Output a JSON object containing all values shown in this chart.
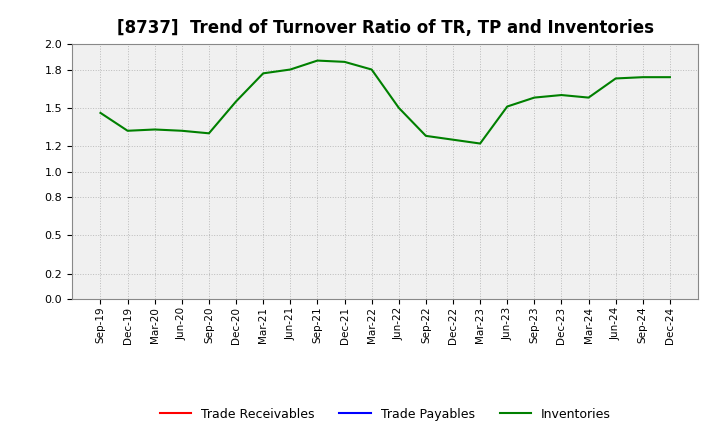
{
  "title": "[8737]  Trend of Turnover Ratio of TR, TP and Inventories",
  "xlabels": [
    "Sep-19",
    "Dec-19",
    "Mar-20",
    "Jun-20",
    "Sep-20",
    "Dec-20",
    "Mar-21",
    "Jun-21",
    "Sep-21",
    "Dec-21",
    "Mar-22",
    "Jun-22",
    "Sep-22",
    "Dec-22",
    "Mar-23",
    "Jun-23",
    "Sep-23",
    "Dec-23",
    "Mar-24",
    "Jun-24",
    "Sep-24",
    "Dec-24"
  ],
  "inventories": [
    1.46,
    1.32,
    1.33,
    1.32,
    1.3,
    1.55,
    1.77,
    1.8,
    1.87,
    1.86,
    1.8,
    1.5,
    1.28,
    1.25,
    1.22,
    1.51,
    1.58,
    1.6,
    1.58,
    1.73,
    1.74,
    1.74
  ],
  "trade_receivables": [],
  "trade_payables": [],
  "inventories_color": "#008000",
  "trade_receivables_color": "#FF0000",
  "trade_payables_color": "#0000FF",
  "ylim": [
    0.0,
    2.0
  ],
  "yticks": [
    0.0,
    0.2,
    0.5,
    0.8,
    1.0,
    1.2,
    1.5,
    1.8,
    2.0
  ],
  "plot_bg_color": "#F0F0F0",
  "background_color": "#FFFFFF",
  "grid_color": "#BBBBBB",
  "title_fontsize": 12,
  "legend_labels": [
    "Trade Receivables",
    "Trade Payables",
    "Inventories"
  ]
}
